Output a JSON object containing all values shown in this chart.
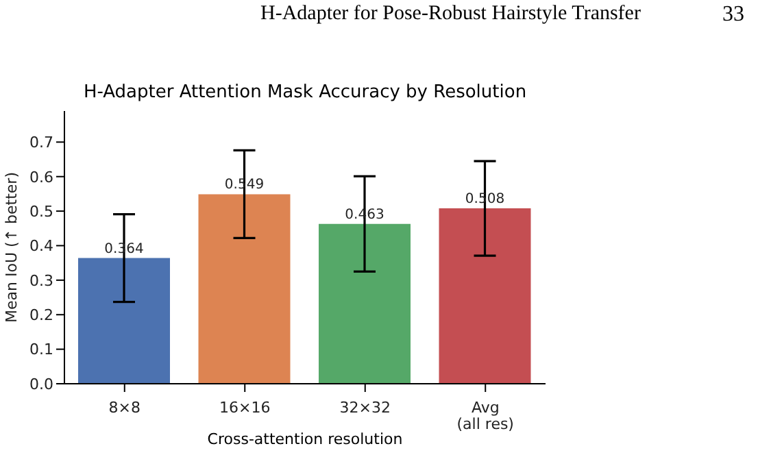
{
  "chart_data": {
    "type": "bar",
    "title": "H-Adapter Attention Mask Accuracy by Resolution",
    "xlabel": "Cross-attention resolution",
    "ylabel": "Mean IoU (↑ better)",
    "annotations": [
      "H-Adapter for Pose-Robust Hairstyle Transfer",
      "33"
    ],
    "categories": [
      "8×8",
      "16×16",
      "32×32",
      "Avg\n(all res)"
    ],
    "values": [
      0.364,
      0.549,
      0.463,
      0.508
    ],
    "colors": [
      "#4c72b0",
      "#dd8452",
      "#55a868",
      "#c44e52"
    ],
    "errors": [
      0.127,
      0.127,
      0.138,
      0.137
    ],
    "data_labels": true,
    "ylim": [
      0,
      0.79
    ],
    "yticks": [
      {
        "value": 0,
        "label": "0.0"
      },
      {
        "value": 0.1,
        "label": "0.1"
      },
      {
        "value": 0.2,
        "label": "0.2"
      },
      {
        "value": 0.3,
        "label": "0.3"
      },
      {
        "value": 0.4,
        "label": "0.4"
      },
      {
        "value": 0.5,
        "label": "0.5"
      },
      {
        "value": 0.6,
        "label": "0.6"
      },
      {
        "value": 0.7,
        "label": "0.7"
      }
    ],
    "grid": false,
    "legend": false
  }
}
